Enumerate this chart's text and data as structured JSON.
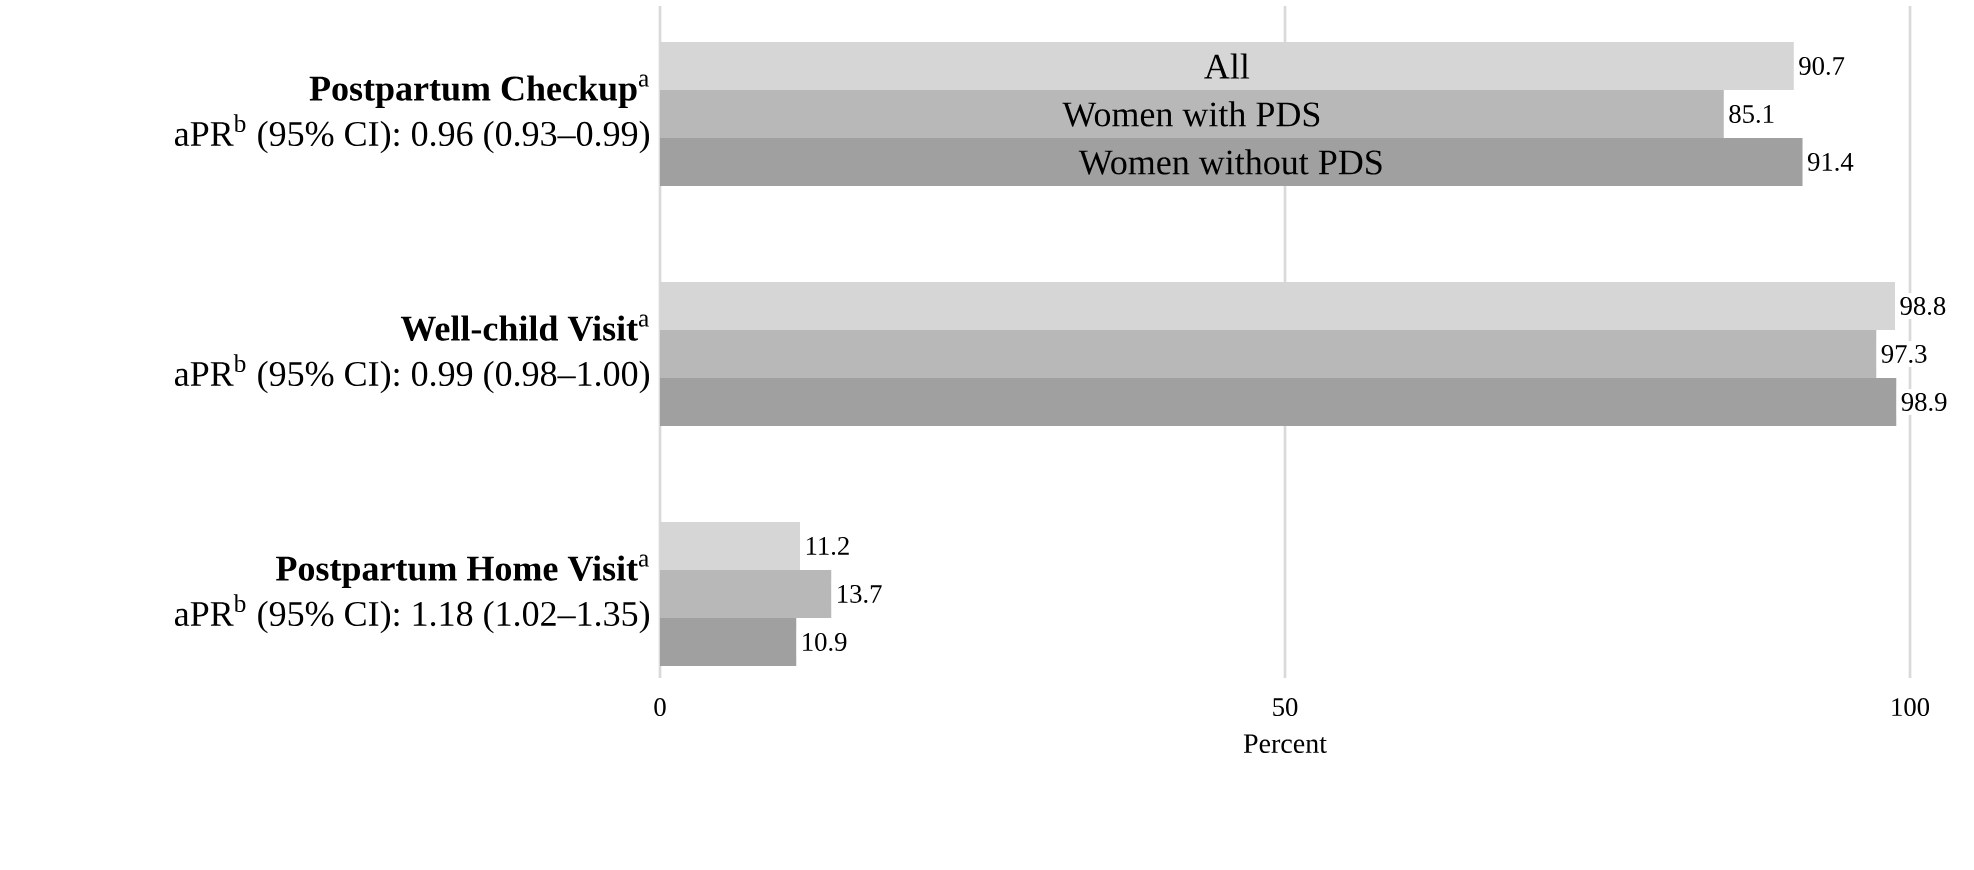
{
  "chart_data": {
    "type": "bar",
    "orientation": "horizontal",
    "xlabel": "Percent",
    "categories": [
      "**Postpartum Checkup**$^{a}$",
      "**Well-child Visit**$^{a}$",
      "**Postpartum Home Visit**$^{a}$"
    ],
    "annotations": [
      "aPR$^{b}$ (95% CI): 0.96 (0.93–0.99)",
      "aPR$^{b}$ (95% CI): 0.99 (0.98–1.00)",
      "aPR$^{b}$ (95% CI):  1.18 (1.02–1.35)"
    ],
    "series": [
      {
        "name": "All",
        "color": "#d6d6d6",
        "values": [
          90.7,
          98.8,
          11.2
        ]
      },
      {
        "name": "Women with PDS",
        "color": "#b8b8b8",
        "values": [
          85.1,
          97.3,
          13.7
        ]
      },
      {
        "name": "Women without PDS",
        "color": "#a0a0a0",
        "values": [
          91.4,
          98.9,
          10.9
        ]
      }
    ],
    "xlim": [
      0,
      100
    ],
    "xticks": [
      0,
      50,
      100
    ],
    "grid": "x",
    "data_labels": true
  }
}
